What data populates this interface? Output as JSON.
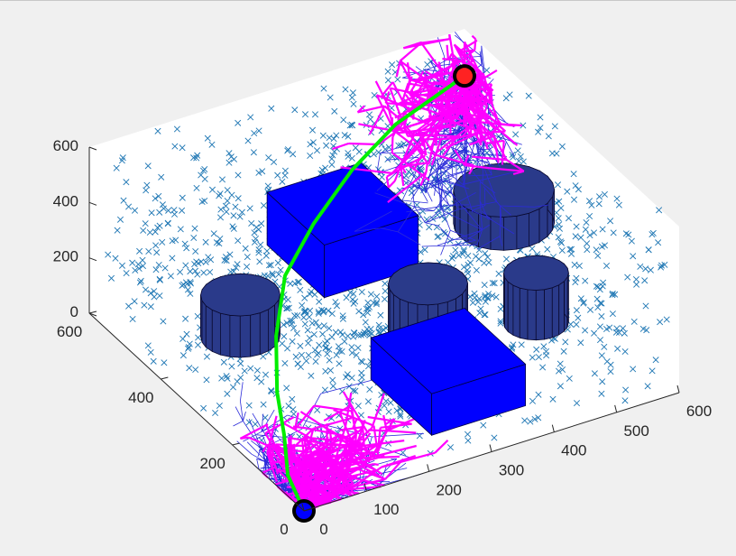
{
  "window": {
    "background": "#f0f0f0"
  },
  "chart_data": {
    "type": "scatter3d",
    "title": "",
    "xlabel": "",
    "ylabel": "",
    "zlabel": "",
    "xlim": [
      0,
      600
    ],
    "ylim": [
      0,
      600
    ],
    "zlim": [
      0,
      600
    ],
    "grid": false,
    "x_ticks": [
      "0",
      "100",
      "200",
      "300",
      "400",
      "500",
      "600"
    ],
    "y_ticks": [
      "0",
      "200",
      "400",
      "600"
    ],
    "z_ticks": [
      "0",
      "200",
      "400",
      "600"
    ],
    "colors": {
      "samples": "#1f77b4",
      "tree_edges_a": "#2b2bd9",
      "tree_edges_b": "#ff00ff",
      "path": "#00ee00",
      "start": "#0000ff",
      "goal": "#ff2222",
      "obstacle_box": "#0000ff",
      "obstacle_cylinder": "#2a3a8a"
    },
    "start": {
      "x": 0,
      "y": 0,
      "z": 0
    },
    "goal": {
      "x": 600,
      "y": 600,
      "z": 430
    },
    "path": [
      {
        "x": 0,
        "y": 0,
        "z": 0
      },
      {
        "x": 20,
        "y": 80,
        "z": 20
      },
      {
        "x": 60,
        "y": 160,
        "z": 40
      },
      {
        "x": 100,
        "y": 250,
        "z": 60
      },
      {
        "x": 150,
        "y": 340,
        "z": 120
      },
      {
        "x": 210,
        "y": 420,
        "z": 200
      },
      {
        "x": 290,
        "y": 480,
        "z": 260
      },
      {
        "x": 380,
        "y": 530,
        "z": 330
      },
      {
        "x": 470,
        "y": 565,
        "z": 390
      },
      {
        "x": 600,
        "y": 600,
        "z": 430
      }
    ],
    "obstacles": [
      {
        "type": "box",
        "x": [
          250,
          400
        ],
        "y": [
          80,
          250
        ],
        "z": [
          0,
          150
        ]
      },
      {
        "type": "box",
        "x": [
          250,
          400
        ],
        "y": [
          380,
          540
        ],
        "z": [
          140,
          330
        ]
      },
      {
        "type": "cylinder",
        "center": [
          370,
          300
        ],
        "radius": 55,
        "z": [
          0,
          200
        ]
      },
      {
        "type": "cylinder",
        "center": [
          520,
          260
        ],
        "radius": 45,
        "z": [
          0,
          180
        ]
      },
      {
        "type": "cylinder",
        "center": [
          560,
          420
        ],
        "radius": 70,
        "z": [
          140,
          260
        ]
      },
      {
        "type": "cylinder",
        "center": [
          150,
          440
        ],
        "radius": 55,
        "z": [
          0,
          150
        ]
      }
    ],
    "sample_count": 1600
  }
}
